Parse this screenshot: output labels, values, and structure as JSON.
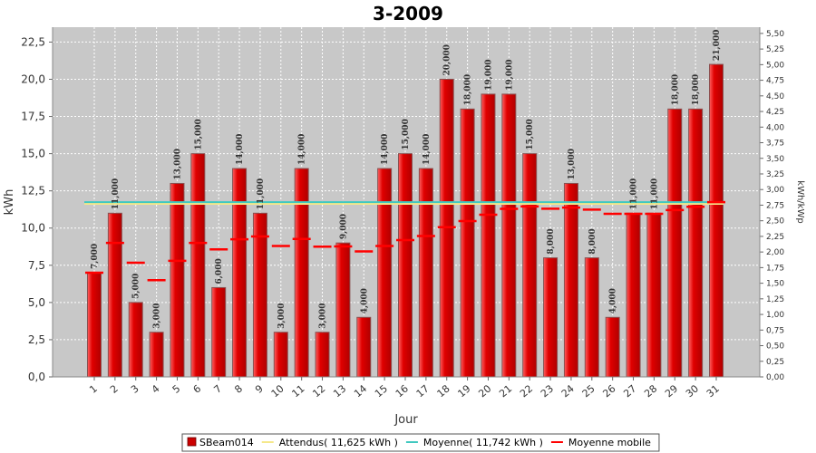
{
  "chart_data": {
    "type": "bar",
    "title": "3-2009",
    "xlabel": "Jour",
    "ylabel": "kWh",
    "y2label": "kWh/kWp",
    "categories": [
      "1",
      "2",
      "3",
      "4",
      "5",
      "6",
      "7",
      "8",
      "9",
      "10",
      "11",
      "12",
      "13",
      "14",
      "15",
      "16",
      "17",
      "18",
      "19",
      "20",
      "21",
      "22",
      "23",
      "24",
      "25",
      "26",
      "27",
      "28",
      "29",
      "30",
      "31"
    ],
    "ylim": [
      0,
      23.5
    ],
    "y2lim": [
      0,
      5.6
    ],
    "yticks": [
      "0,0",
      "2,5",
      "5,0",
      "7,5",
      "10,0",
      "12,5",
      "15,0",
      "17,5",
      "20,0",
      "22,5"
    ],
    "y2ticks": [
      "0,00",
      "0,25",
      "0,50",
      "0,75",
      "1,00",
      "1,25",
      "1,50",
      "1,75",
      "2,00",
      "2,25",
      "2,50",
      "2,75",
      "3,00",
      "3,25",
      "3,50",
      "3,75",
      "4,00",
      "4,25",
      "4,50",
      "4,75",
      "5,00",
      "5,25",
      "5,50"
    ],
    "series": [
      {
        "name": "SBeam014",
        "type": "bar",
        "color": "#e00000",
        "values": [
          7,
          11,
          5,
          3,
          13,
          15,
          6,
          14,
          11,
          3,
          14,
          3,
          9,
          4,
          14,
          15,
          14,
          20,
          18,
          19,
          19,
          15,
          8,
          13,
          8,
          4,
          11,
          11,
          18,
          18,
          21
        ],
        "labels": [
          "7,000",
          "11,000",
          "5,000",
          "3,000",
          "13,000",
          "15,000",
          "6,000",
          "14,000",
          "11,000",
          "3,000",
          "14,000",
          "3,000",
          "9,000",
          "4,000",
          "14,000",
          "15,000",
          "14,000",
          "20,000",
          "18,000",
          "19,000",
          "19,000",
          "15,000",
          "8,000",
          "13,000",
          "8,000",
          "4,000",
          "11,000",
          "11,000",
          "18,000",
          "18,000",
          "21,000"
        ]
      },
      {
        "name": "Attendus( 11,625 kWh )",
        "type": "hline",
        "color": "#f5e88a",
        "value": 11.625
      },
      {
        "name": "Moyenne( 11,742 kWh )",
        "type": "hline",
        "color": "#40c8c0",
        "value": 11.742
      },
      {
        "name": "Moyenne mobile",
        "type": "step",
        "color": "#ff0000",
        "values": [
          7.0,
          9.0,
          7.67,
          6.5,
          7.8,
          9.0,
          8.57,
          9.25,
          9.44,
          8.8,
          9.27,
          8.75,
          8.77,
          8.43,
          8.8,
          9.19,
          9.47,
          10.06,
          10.47,
          10.9,
          11.29,
          11.45,
          11.3,
          11.38,
          11.24,
          10.96,
          10.96,
          10.96,
          11.21,
          11.43,
          11.74
        ]
      }
    ],
    "grid": true,
    "legend_position": "bottom"
  },
  "legend": {
    "items": [
      {
        "label": "SBeam014",
        "color": "#cc0000",
        "shape": "square"
      },
      {
        "label": "Attendus( 11,625 kWh )",
        "color": "#f5e88a",
        "shape": "line"
      },
      {
        "label": "Moyenne( 11,742 kWh )",
        "color": "#40c8c0",
        "shape": "line"
      },
      {
        "label": "Moyenne mobile",
        "color": "#ff0000",
        "shape": "line"
      }
    ]
  },
  "colors": {
    "plot_background": "#c8c8c8",
    "bar_fill": "#e00000",
    "bar_highlight": "#ff6060",
    "bar_edge": "#8a5050"
  }
}
